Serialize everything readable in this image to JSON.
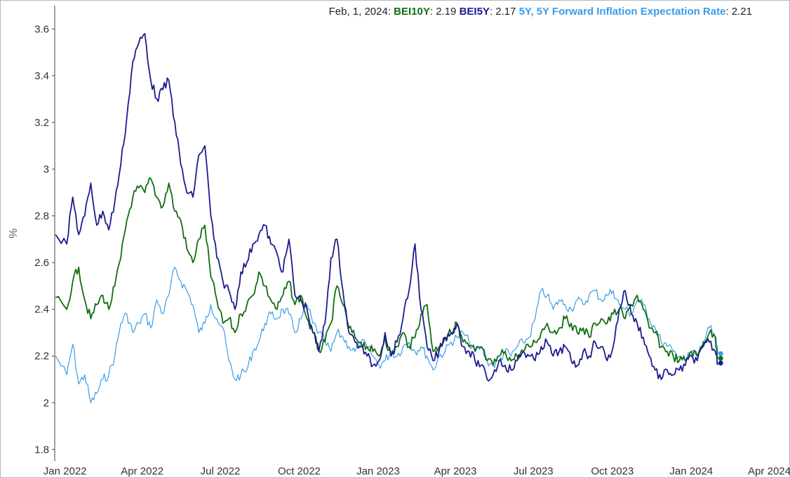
{
  "chart_data": {
    "type": "line",
    "title": "",
    "xlabel": "",
    "ylabel": "%",
    "ylim": [
      1.75,
      3.7
    ],
    "xlim": [
      "2021-12-20",
      "2024-04-12"
    ],
    "grid": false,
    "legend": {
      "placement": "top-right",
      "date_label": "Feb, 1, 2024",
      "items": [
        {
          "name": "BEI10Y",
          "value": "2.19"
        },
        {
          "name": "BEI5Y",
          "value": "2.17"
        },
        {
          "name": "5Y, 5Y Forward Inflation Expectation Rate",
          "value": "2.21"
        }
      ]
    },
    "x_ticks": [
      {
        "date": "2022-01-01",
        "label": "Jan 2022"
      },
      {
        "date": "2022-04-01",
        "label": "Apr 2022"
      },
      {
        "date": "2022-07-01",
        "label": "Jul 2022"
      },
      {
        "date": "2022-10-01",
        "label": "Oct 2022"
      },
      {
        "date": "2023-01-01",
        "label": "Jan 2023"
      },
      {
        "date": "2023-04-01",
        "label": "Apr 2023"
      },
      {
        "date": "2023-07-01",
        "label": "Jul 2023"
      },
      {
        "date": "2023-10-01",
        "label": "Oct 2023"
      },
      {
        "date": "2024-01-01",
        "label": "Jan 2024"
      },
      {
        "date": "2024-04-01",
        "label": "Apr 2024"
      }
    ],
    "y_ticks": [
      {
        "value": 1.8,
        "label": "1.8"
      },
      {
        "value": 2.0,
        "label": "2"
      },
      {
        "value": 2.2,
        "label": "2.2"
      },
      {
        "value": 2.4,
        "label": "2.4"
      },
      {
        "value": 2.6,
        "label": "2.6"
      },
      {
        "value": 2.8,
        "label": "2.8"
      },
      {
        "value": 3.0,
        "label": "3"
      },
      {
        "value": 3.2,
        "label": "3.2"
      },
      {
        "value": 3.4,
        "label": "3.4"
      },
      {
        "value": 3.6,
        "label": "3.6"
      }
    ],
    "series": [
      {
        "name": "5Y, 5Y Forward Inflation Expectation Rate",
        "color": "#3a9ce8",
        "x": [
          "2021-12-21",
          "2022-01-03",
          "2022-01-10",
          "2022-01-17",
          "2022-01-24",
          "2022-01-31",
          "2022-02-07",
          "2022-02-14",
          "2022-02-21",
          "2022-02-28",
          "2022-03-07",
          "2022-03-14",
          "2022-03-21",
          "2022-03-28",
          "2022-04-04",
          "2022-04-11",
          "2022-04-18",
          "2022-04-25",
          "2022-05-02",
          "2022-05-09",
          "2022-05-16",
          "2022-05-23",
          "2022-05-30",
          "2022-06-06",
          "2022-06-13",
          "2022-06-20",
          "2022-06-27",
          "2022-07-04",
          "2022-07-11",
          "2022-07-18",
          "2022-07-25",
          "2022-08-01",
          "2022-08-08",
          "2022-08-15",
          "2022-08-22",
          "2022-08-29",
          "2022-09-05",
          "2022-09-12",
          "2022-09-19",
          "2022-09-26",
          "2022-10-03",
          "2022-10-10",
          "2022-10-17",
          "2022-10-24",
          "2022-10-31",
          "2022-11-07",
          "2022-11-14",
          "2022-11-21",
          "2022-11-28",
          "2022-12-05",
          "2022-12-12",
          "2022-12-19",
          "2022-12-26",
          "2023-01-02",
          "2023-01-09",
          "2023-01-16",
          "2023-01-23",
          "2023-01-30",
          "2023-02-06",
          "2023-02-13",
          "2023-02-20",
          "2023-02-27",
          "2023-03-06",
          "2023-03-13",
          "2023-03-20",
          "2023-03-27",
          "2023-04-03",
          "2023-04-10",
          "2023-04-17",
          "2023-04-24",
          "2023-05-01",
          "2023-05-08",
          "2023-05-15",
          "2023-05-22",
          "2023-05-29",
          "2023-06-05",
          "2023-06-12",
          "2023-06-19",
          "2023-06-26",
          "2023-07-03",
          "2023-07-10",
          "2023-07-17",
          "2023-07-24",
          "2023-07-31",
          "2023-08-07",
          "2023-08-14",
          "2023-08-21",
          "2023-08-28",
          "2023-09-04",
          "2023-09-11",
          "2023-09-18",
          "2023-09-25",
          "2023-10-02",
          "2023-10-09",
          "2023-10-16",
          "2023-10-23",
          "2023-10-30",
          "2023-11-06",
          "2023-11-13",
          "2023-11-20",
          "2023-11-27",
          "2023-12-04",
          "2023-12-11",
          "2023-12-18",
          "2023-12-25",
          "2024-01-01",
          "2024-01-08",
          "2024-01-15",
          "2024-01-22",
          "2024-01-29",
          "2024-02-01"
        ],
        "y": [
          2.2,
          2.12,
          2.25,
          2.08,
          2.12,
          2.0,
          2.04,
          2.1,
          2.12,
          2.2,
          2.34,
          2.38,
          2.3,
          2.34,
          2.38,
          2.32,
          2.44,
          2.38,
          2.46,
          2.58,
          2.52,
          2.48,
          2.42,
          2.3,
          2.34,
          2.42,
          2.36,
          2.32,
          2.18,
          2.1,
          2.12,
          2.14,
          2.22,
          2.26,
          2.34,
          2.38,
          2.36,
          2.4,
          2.38,
          2.3,
          2.36,
          2.42,
          2.34,
          2.3,
          2.26,
          2.22,
          2.3,
          2.28,
          2.24,
          2.22,
          2.26,
          2.24,
          2.2,
          2.16,
          2.18,
          2.22,
          2.2,
          2.24,
          2.26,
          2.22,
          2.24,
          2.2,
          2.14,
          2.2,
          2.22,
          2.26,
          2.28,
          2.3,
          2.26,
          2.22,
          2.24,
          2.18,
          2.16,
          2.18,
          2.22,
          2.2,
          2.24,
          2.26,
          2.28,
          2.36,
          2.48,
          2.46,
          2.4,
          2.44,
          2.42,
          2.4,
          2.44,
          2.42,
          2.46,
          2.48,
          2.44,
          2.46,
          2.48,
          2.42,
          2.4,
          2.38,
          2.44,
          2.42,
          2.36,
          2.32,
          2.26,
          2.24,
          2.22,
          2.2,
          2.18,
          2.22,
          2.2,
          2.26,
          2.32,
          2.28,
          2.21
        ]
      },
      {
        "name": "BEI10Y",
        "color": "#116d11",
        "x": [
          "2021-12-21",
          "2022-01-03",
          "2022-01-10",
          "2022-01-17",
          "2022-01-24",
          "2022-01-31",
          "2022-02-07",
          "2022-02-14",
          "2022-02-21",
          "2022-02-28",
          "2022-03-07",
          "2022-03-14",
          "2022-03-21",
          "2022-03-28",
          "2022-04-04",
          "2022-04-11",
          "2022-04-18",
          "2022-04-25",
          "2022-05-02",
          "2022-05-09",
          "2022-05-16",
          "2022-05-23",
          "2022-05-30",
          "2022-06-06",
          "2022-06-13",
          "2022-06-20",
          "2022-06-27",
          "2022-07-04",
          "2022-07-11",
          "2022-07-18",
          "2022-07-25",
          "2022-08-01",
          "2022-08-08",
          "2022-08-15",
          "2022-08-22",
          "2022-08-29",
          "2022-09-05",
          "2022-09-12",
          "2022-09-19",
          "2022-09-26",
          "2022-10-03",
          "2022-10-10",
          "2022-10-17",
          "2022-10-24",
          "2022-10-31",
          "2022-11-07",
          "2022-11-14",
          "2022-11-21",
          "2022-11-28",
          "2022-12-05",
          "2022-12-12",
          "2022-12-19",
          "2022-12-26",
          "2023-01-02",
          "2023-01-09",
          "2023-01-16",
          "2023-01-23",
          "2023-01-30",
          "2023-02-06",
          "2023-02-13",
          "2023-02-20",
          "2023-02-27",
          "2023-03-06",
          "2023-03-13",
          "2023-03-20",
          "2023-03-27",
          "2023-04-03",
          "2023-04-10",
          "2023-04-17",
          "2023-04-24",
          "2023-05-01",
          "2023-05-08",
          "2023-05-15",
          "2023-05-22",
          "2023-05-29",
          "2023-06-05",
          "2023-06-12",
          "2023-06-19",
          "2023-06-26",
          "2023-07-03",
          "2023-07-10",
          "2023-07-17",
          "2023-07-24",
          "2023-07-31",
          "2023-08-07",
          "2023-08-14",
          "2023-08-21",
          "2023-08-28",
          "2023-09-04",
          "2023-09-11",
          "2023-09-18",
          "2023-09-25",
          "2023-10-02",
          "2023-10-09",
          "2023-10-16",
          "2023-10-23",
          "2023-10-30",
          "2023-11-06",
          "2023-11-13",
          "2023-11-20",
          "2023-11-27",
          "2023-12-04",
          "2023-12-11",
          "2023-12-18",
          "2023-12-25",
          "2024-01-01",
          "2024-01-08",
          "2024-01-15",
          "2024-01-22",
          "2024-01-29",
          "2024-02-01"
        ],
        "y": [
          2.45,
          2.4,
          2.52,
          2.58,
          2.44,
          2.36,
          2.42,
          2.46,
          2.4,
          2.5,
          2.62,
          2.78,
          2.88,
          2.92,
          2.9,
          2.96,
          2.88,
          2.84,
          2.94,
          2.82,
          2.78,
          2.66,
          2.6,
          2.7,
          2.76,
          2.54,
          2.44,
          2.34,
          2.36,
          2.3,
          2.38,
          2.42,
          2.46,
          2.56,
          2.5,
          2.44,
          2.4,
          2.46,
          2.52,
          2.42,
          2.46,
          2.36,
          2.3,
          2.22,
          2.26,
          2.34,
          2.5,
          2.42,
          2.32,
          2.28,
          2.26,
          2.24,
          2.22,
          2.2,
          2.28,
          2.2,
          2.24,
          2.3,
          2.24,
          2.28,
          2.38,
          2.42,
          2.22,
          2.24,
          2.28,
          2.3,
          2.34,
          2.26,
          2.24,
          2.22,
          2.24,
          2.18,
          2.16,
          2.2,
          2.22,
          2.18,
          2.2,
          2.22,
          2.24,
          2.26,
          2.3,
          2.34,
          2.3,
          2.32,
          2.36,
          2.34,
          2.3,
          2.32,
          2.28,
          2.34,
          2.36,
          2.34,
          2.38,
          2.4,
          2.36,
          2.42,
          2.46,
          2.4,
          2.32,
          2.3,
          2.24,
          2.22,
          2.2,
          2.18,
          2.18,
          2.22,
          2.2,
          2.26,
          2.3,
          2.28,
          2.19
        ]
      },
      {
        "name": "BEI5Y",
        "color": "#1b1b8f",
        "x": [
          "2021-12-21",
          "2022-01-03",
          "2022-01-10",
          "2022-01-17",
          "2022-01-24",
          "2022-01-31",
          "2022-02-07",
          "2022-02-14",
          "2022-02-21",
          "2022-02-28",
          "2022-03-07",
          "2022-03-14",
          "2022-03-21",
          "2022-03-28",
          "2022-04-04",
          "2022-04-11",
          "2022-04-18",
          "2022-04-25",
          "2022-05-02",
          "2022-05-09",
          "2022-05-16",
          "2022-05-23",
          "2022-05-30",
          "2022-06-06",
          "2022-06-13",
          "2022-06-20",
          "2022-06-27",
          "2022-07-04",
          "2022-07-11",
          "2022-07-18",
          "2022-07-25",
          "2022-08-01",
          "2022-08-08",
          "2022-08-15",
          "2022-08-22",
          "2022-08-29",
          "2022-09-05",
          "2022-09-12",
          "2022-09-19",
          "2022-09-26",
          "2022-10-03",
          "2022-10-10",
          "2022-10-17",
          "2022-10-24",
          "2022-10-31",
          "2022-11-07",
          "2022-11-14",
          "2022-11-21",
          "2022-11-28",
          "2022-12-05",
          "2022-12-12",
          "2022-12-19",
          "2022-12-26",
          "2023-01-02",
          "2023-01-09",
          "2023-01-16",
          "2023-01-23",
          "2023-01-30",
          "2023-02-06",
          "2023-02-13",
          "2023-02-20",
          "2023-02-27",
          "2023-03-06",
          "2023-03-13",
          "2023-03-20",
          "2023-03-27",
          "2023-04-03",
          "2023-04-10",
          "2023-04-17",
          "2023-04-24",
          "2023-05-01",
          "2023-05-08",
          "2023-05-15",
          "2023-05-22",
          "2023-05-29",
          "2023-06-05",
          "2023-06-12",
          "2023-06-19",
          "2023-06-26",
          "2023-07-03",
          "2023-07-10",
          "2023-07-17",
          "2023-07-24",
          "2023-07-31",
          "2023-08-07",
          "2023-08-14",
          "2023-08-21",
          "2023-08-28",
          "2023-09-04",
          "2023-09-11",
          "2023-09-18",
          "2023-09-25",
          "2023-10-02",
          "2023-10-09",
          "2023-10-16",
          "2023-10-23",
          "2023-10-30",
          "2023-11-06",
          "2023-11-13",
          "2023-11-20",
          "2023-11-27",
          "2023-12-04",
          "2023-12-11",
          "2023-12-18",
          "2023-12-25",
          "2024-01-01",
          "2024-01-08",
          "2024-01-15",
          "2024-01-22",
          "2024-01-29",
          "2024-02-01"
        ],
        "y": [
          2.72,
          2.68,
          2.88,
          2.72,
          2.8,
          2.94,
          2.76,
          2.82,
          2.74,
          2.86,
          3.02,
          3.22,
          3.46,
          3.54,
          3.58,
          3.38,
          3.3,
          3.34,
          3.38,
          3.2,
          3.02,
          2.9,
          2.88,
          3.06,
          3.1,
          2.8,
          2.62,
          2.52,
          2.48,
          2.4,
          2.56,
          2.6,
          2.68,
          2.72,
          2.76,
          2.68,
          2.64,
          2.56,
          2.7,
          2.46,
          2.44,
          2.4,
          2.3,
          2.22,
          2.34,
          2.62,
          2.7,
          2.48,
          2.3,
          2.26,
          2.24,
          2.2,
          2.16,
          2.18,
          2.3,
          2.2,
          2.26,
          2.36,
          2.48,
          2.68,
          2.4,
          2.24,
          2.18,
          2.22,
          2.28,
          2.3,
          2.34,
          2.24,
          2.22,
          2.18,
          2.16,
          2.1,
          2.12,
          2.18,
          2.16,
          2.14,
          2.18,
          2.22,
          2.2,
          2.18,
          2.24,
          2.26,
          2.2,
          2.22,
          2.24,
          2.18,
          2.16,
          2.22,
          2.2,
          2.26,
          2.24,
          2.18,
          2.24,
          2.4,
          2.48,
          2.38,
          2.34,
          2.28,
          2.2,
          2.14,
          2.1,
          2.14,
          2.12,
          2.14,
          2.16,
          2.2,
          2.18,
          2.24,
          2.26,
          2.22,
          2.17
        ]
      }
    ]
  }
}
